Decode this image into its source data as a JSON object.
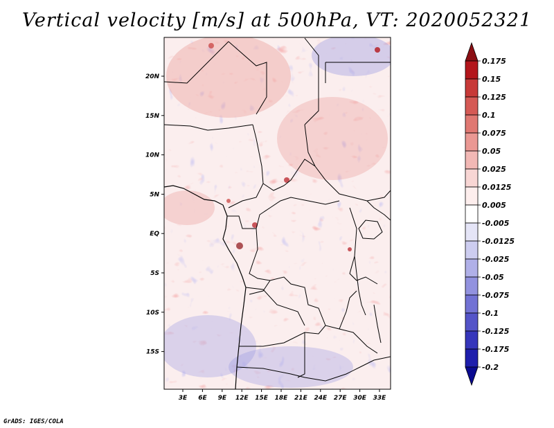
{
  "title": "Vertical velocity [m/s] at 500hPa, VT: 2020052321",
  "credit": "GrADS: IGES/COLA",
  "map": {
    "region": "Central Africa",
    "lat_labels": [
      "20N",
      "15N",
      "10N",
      "5N",
      "EQ",
      "5S",
      "10S",
      "15S"
    ],
    "lon_labels": [
      "3E",
      "6E",
      "9E",
      "12E",
      "15E",
      "18E",
      "21E",
      "24E",
      "27E",
      "30E",
      "33E"
    ]
  },
  "colorbar": {
    "labels": [
      "0.175",
      "0.15",
      "0.125",
      "0.1",
      "0.075",
      "0.05",
      "0.025",
      "0.0125",
      "0.005",
      "-0.005",
      "-0.0125",
      "-0.025",
      "-0.05",
      "-0.075",
      "-0.1",
      "-0.125",
      "-0.175",
      "-0.2"
    ],
    "colors": [
      "#8b0f14",
      "#b3161c",
      "#c73a38",
      "#d55a55",
      "#e07872",
      "#ea9893",
      "#f2b8b5",
      "#f8d6d4",
      "#fdeeed",
      "#ffffff",
      "#e5e5f7",
      "#cdcdf0",
      "#b0b0e8",
      "#9292df",
      "#7272d4",
      "#5454c8",
      "#3636bb",
      "#1e1eac",
      "#0a0a90"
    ]
  }
}
